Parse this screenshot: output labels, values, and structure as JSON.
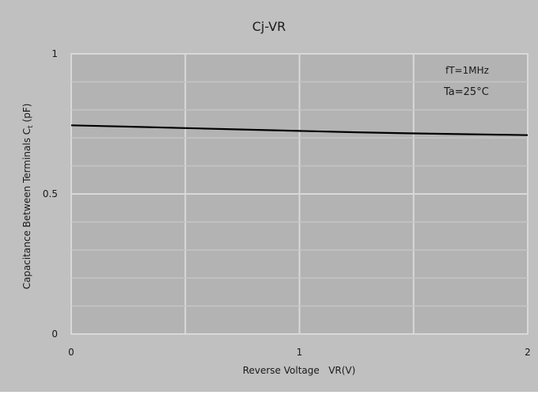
{
  "chart_data": {
    "type": "line",
    "title": "Cj-VR",
    "xlabel": "Reverse Voltage   VR(V)",
    "ylabel": "Capacitance Between Terminals C",
    "ylabel_subscript": "t",
    "ylabel_unit": " (pF)",
    "xlim": [
      0,
      2
    ],
    "ylim": [
      0,
      1
    ],
    "x_ticks": [
      0,
      1,
      2
    ],
    "x_tick_labels": [
      "0",
      "1",
      "2"
    ],
    "y_ticks": [
      0,
      0.5,
      1
    ],
    "y_tick_labels": [
      "0",
      "0.5",
      "1"
    ],
    "grid": true,
    "annotations": [
      "fT=1MHz",
      "Ta=25°C"
    ],
    "series": [
      {
        "x": [
          0,
          0.25,
          0.5,
          0.75,
          1.0,
          1.25,
          1.5,
          1.75,
          2.0
        ],
        "y": [
          0.745,
          0.74,
          0.735,
          0.73,
          0.725,
          0.72,
          0.716,
          0.713,
          0.71
        ]
      }
    ]
  },
  "colors": {
    "outer_background": "#c0c0c0",
    "plot_background": "#b3b3b3",
    "grid_major": "#d9d9d9",
    "grid_minor": "#c6c6c6",
    "line": "#000000",
    "text": "#1a1a1a"
  }
}
